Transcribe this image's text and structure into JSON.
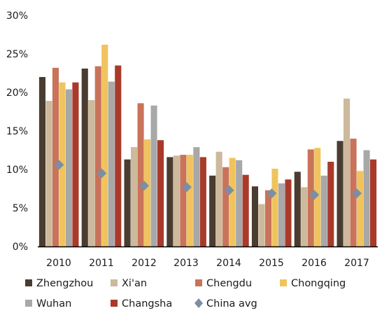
{
  "chart_data": {
    "type": "bar",
    "title": "",
    "xlabel": "",
    "ylabel": "",
    "ylim": [
      0,
      30
    ],
    "yticks": [
      "0%",
      "5%",
      "10%",
      "15%",
      "20%",
      "25%",
      "30%"
    ],
    "grid": false,
    "legend_position": "bottom",
    "categories": [
      "2010",
      "2011",
      "2012",
      "2013",
      "2014",
      "2015",
      "2016",
      "2017"
    ],
    "series": [
      {
        "name": "Zhengzhou",
        "color": "#4a3c30",
        "values": [
          22.0,
          23.1,
          11.3,
          11.6,
          9.2,
          7.8,
          9.7,
          13.7
        ]
      },
      {
        "name": "Xi'an",
        "color": "#cdb99b",
        "values": [
          18.9,
          19.0,
          12.9,
          11.8,
          12.3,
          5.5,
          7.7,
          19.2
        ]
      },
      {
        "name": "Chengdu",
        "color": "#c9735a",
        "values": [
          23.2,
          23.4,
          18.6,
          11.9,
          10.3,
          7.3,
          12.6,
          14.0
        ]
      },
      {
        "name": "Chongqing",
        "color": "#f0c35e",
        "values": [
          21.3,
          26.2,
          13.9,
          11.9,
          11.5,
          10.1,
          12.8,
          9.8
        ]
      },
      {
        "name": "Wuhan",
        "color": "#a8a8a8",
        "values": [
          20.4,
          21.4,
          18.3,
          12.9,
          11.2,
          8.2,
          9.2,
          12.5
        ]
      },
      {
        "name": "Changsha",
        "color": "#a93a2a",
        "values": [
          21.3,
          23.5,
          13.8,
          11.6,
          9.3,
          8.7,
          11.0,
          11.3
        ]
      }
    ],
    "markers": {
      "name": "China avg",
      "shape": "diamond",
      "color": "#7c8ea6",
      "values": [
        10.6,
        9.5,
        7.9,
        7.7,
        7.3,
        6.9,
        6.7,
        6.9
      ]
    }
  }
}
